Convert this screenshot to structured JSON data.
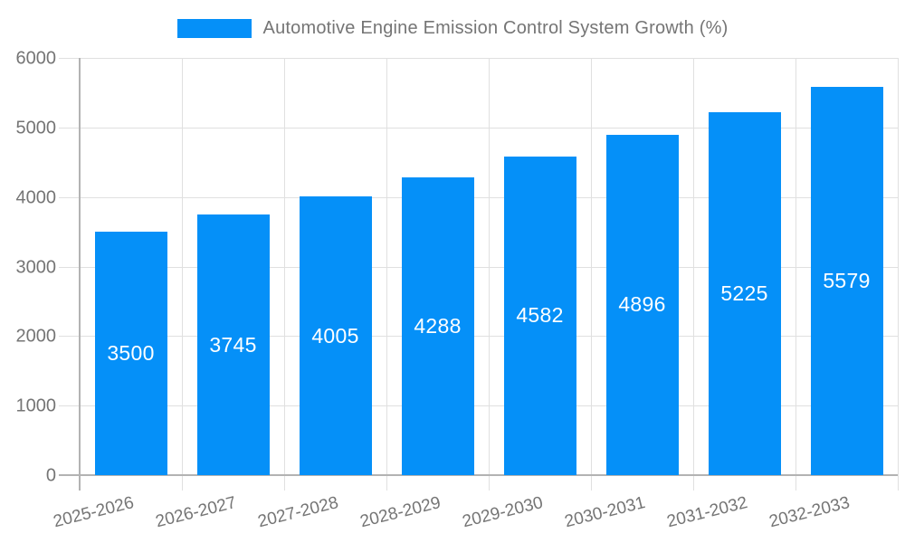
{
  "legend": {
    "label": "Automotive Engine Emission Control System Growth (%)",
    "swatch_color": "#0590f8"
  },
  "chart_data": {
    "type": "bar",
    "title": "Automotive Engine Emission Control System Growth (%)",
    "categories": [
      "2025-2026",
      "2026-2027",
      "2027-2028",
      "2028-2029",
      "2029-2030",
      "2030-2031",
      "2031-2032",
      "2032-2033"
    ],
    "values": [
      3500,
      3745,
      4005,
      4288,
      4582,
      4896,
      5225,
      5579
    ],
    "value_labels": [
      "3500",
      "3745",
      "4005",
      "4288",
      "4582",
      "4896",
      "5225",
      "5579"
    ],
    "xlabel": "",
    "ylabel": "",
    "ylim": [
      0,
      6000
    ],
    "y_ticks": [
      0,
      1000,
      2000,
      3000,
      4000,
      5000,
      6000
    ],
    "y_tick_labels": [
      "0",
      "1000",
      "2000",
      "3000",
      "4000",
      "5000",
      "6000"
    ],
    "grid": true,
    "legend_position": "top",
    "bar_color": "#0590f8",
    "value_label_color": "#ffffff",
    "axis_text_color": "#757575"
  }
}
